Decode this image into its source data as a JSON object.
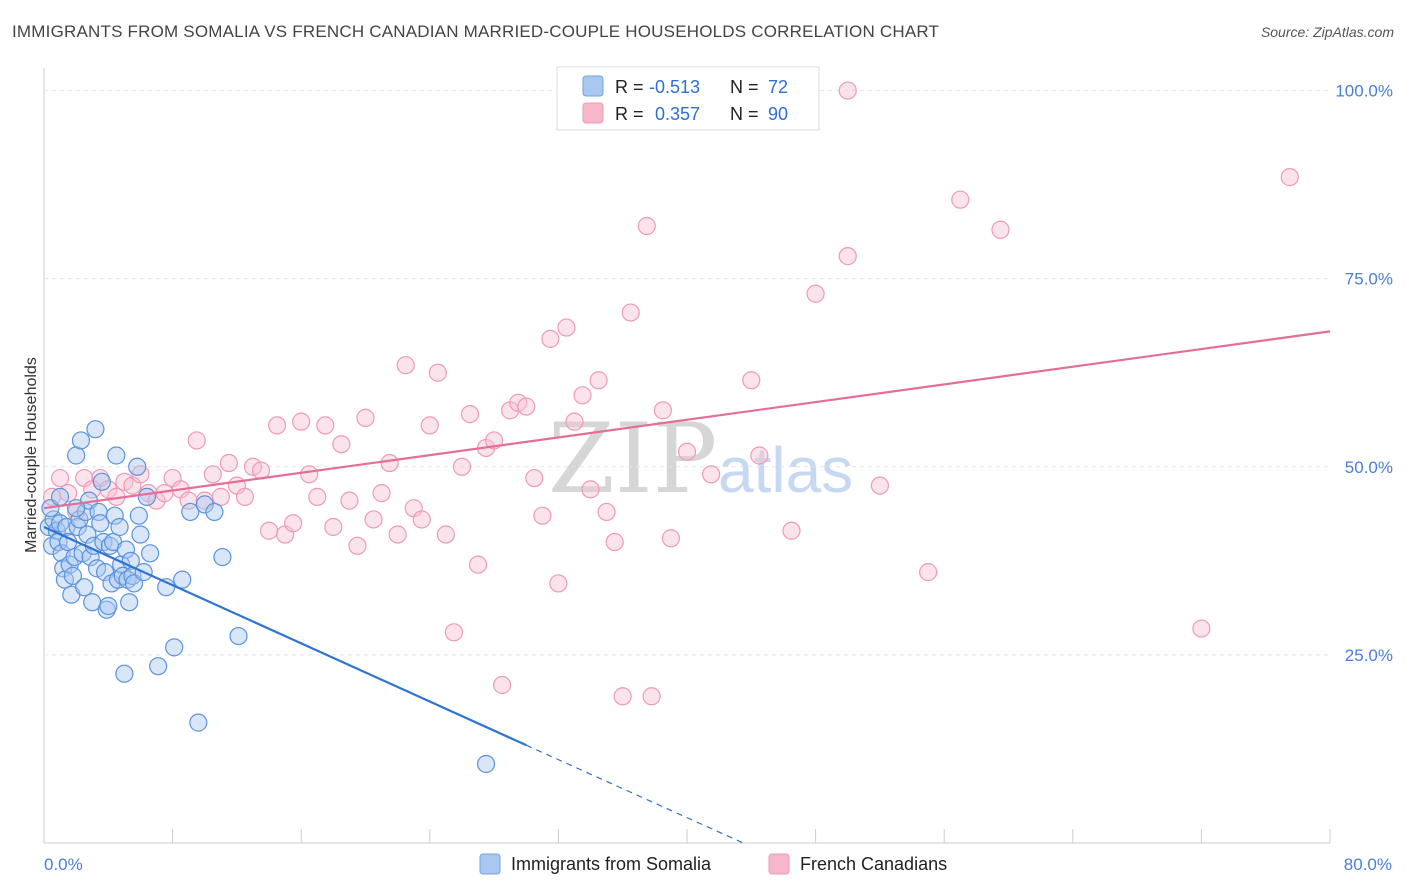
{
  "title": "IMMIGRANTS FROM SOMALIA VS FRENCH CANADIAN MARRIED-COUPLE HOUSEHOLDS CORRELATION CHART",
  "source": "Source: ZipAtlas.com",
  "watermark": {
    "part1": "ZIP",
    "part2": "atlas"
  },
  "legend_top": {
    "rows": [
      {
        "r_label": "R =",
        "r_value": "-0.513",
        "n_label": "N =",
        "n_value": "72",
        "color": "#a9c8f0"
      },
      {
        "r_label": "R =",
        "r_value": "0.357",
        "n_label": "N =",
        "n_value": "90",
        "color": "#f7b6c9"
      }
    ]
  },
  "legend_bottom": [
    {
      "label": "Immigrants from Somalia",
      "color": "#a9c8f0"
    },
    {
      "label": "French Canadians",
      "color": "#f7b6c9"
    }
  ],
  "chart_data": {
    "type": "scatter",
    "title": "IMMIGRANTS FROM SOMALIA VS FRENCH CANADIAN MARRIED-COUPLE HOUSEHOLDS CORRELATION CHART",
    "xlabel": "",
    "ylabel": "Married-couple Households",
    "xlim": [
      0,
      80
    ],
    "ylim": [
      0,
      103
    ],
    "x_tick_labels": {
      "left": "0.0%",
      "right": "80.0%"
    },
    "y_ticks": [
      {
        "value": 100,
        "label": "100.0%"
      },
      {
        "value": 75,
        "label": "75.0%"
      },
      {
        "value": 50,
        "label": "50.0%"
      },
      {
        "value": 25,
        "label": "25.0%"
      }
    ],
    "grid": true,
    "series": [
      {
        "name": "Immigrants from Somalia",
        "color": "#6fa3e0",
        "trend": {
          "x0": 0,
          "y0": 42.0,
          "x1": 30,
          "y1": 13.0,
          "dash_x1": 43.5,
          "dash_y1": 0
        },
        "points": [
          [
            0.3,
            42.0
          ],
          [
            0.5,
            39.5
          ],
          [
            0.6,
            43.0
          ],
          [
            0.8,
            41.5
          ],
          [
            0.9,
            40.0
          ],
          [
            1.0,
            42.5
          ],
          [
            1.1,
            38.5
          ],
          [
            1.2,
            36.5
          ],
          [
            1.3,
            35.0
          ],
          [
            1.4,
            42.0
          ],
          [
            1.5,
            40.0
          ],
          [
            1.6,
            37.0
          ],
          [
            1.7,
            33.0
          ],
          [
            1.8,
            35.5
          ],
          [
            1.9,
            38.0
          ],
          [
            2.0,
            51.5
          ],
          [
            2.1,
            42.0
          ],
          [
            2.2,
            43.0
          ],
          [
            2.3,
            53.5
          ],
          [
            2.4,
            38.5
          ],
          [
            2.5,
            34.0
          ],
          [
            2.6,
            44.0
          ],
          [
            2.7,
            41.0
          ],
          [
            2.8,
            45.5
          ],
          [
            2.9,
            38.0
          ],
          [
            3.0,
            32.0
          ],
          [
            3.1,
            39.5
          ],
          [
            3.2,
            55.0
          ],
          [
            3.3,
            36.5
          ],
          [
            3.4,
            44.0
          ],
          [
            3.5,
            42.5
          ],
          [
            3.6,
            48.0
          ],
          [
            3.7,
            40.0
          ],
          [
            3.8,
            36.0
          ],
          [
            3.9,
            31.0
          ],
          [
            4.0,
            31.5
          ],
          [
            4.1,
            39.5
          ],
          [
            4.2,
            34.5
          ],
          [
            4.3,
            40.0
          ],
          [
            4.4,
            43.5
          ],
          [
            4.5,
            51.5
          ],
          [
            4.6,
            35.0
          ],
          [
            4.7,
            42.0
          ],
          [
            4.8,
            37.0
          ],
          [
            4.9,
            35.5
          ],
          [
            5.0,
            22.5
          ],
          [
            5.1,
            39.0
          ],
          [
            5.2,
            35.0
          ],
          [
            5.3,
            32.0
          ],
          [
            5.4,
            37.5
          ],
          [
            5.5,
            35.5
          ],
          [
            5.6,
            34.5
          ],
          [
            5.8,
            50.0
          ],
          [
            5.9,
            43.5
          ],
          [
            6.0,
            41.0
          ],
          [
            6.2,
            36.0
          ],
          [
            6.4,
            46.0
          ],
          [
            6.6,
            38.5
          ],
          [
            7.1,
            23.5
          ],
          [
            7.6,
            34.0
          ],
          [
            8.1,
            26.0
          ],
          [
            8.6,
            35.0
          ],
          [
            9.1,
            44.0
          ],
          [
            9.6,
            16.0
          ],
          [
            10.0,
            45.0
          ],
          [
            10.6,
            44.0
          ],
          [
            11.1,
            38.0
          ],
          [
            12.1,
            27.5
          ],
          [
            27.5,
            10.5
          ],
          [
            0.4,
            44.5
          ],
          [
            1.0,
            46.0
          ],
          [
            2.0,
            44.5
          ]
        ]
      },
      {
        "name": "French Canadians",
        "color": "#f19ab5",
        "trend": {
          "x0": 0,
          "y0": 44.5,
          "x1": 80,
          "y1": 68.0
        },
        "points": [
          [
            0.5,
            46.0
          ],
          [
            1.0,
            48.5
          ],
          [
            1.5,
            46.5
          ],
          [
            2.0,
            44.0
          ],
          [
            2.5,
            48.5
          ],
          [
            3.0,
            47.0
          ],
          [
            3.5,
            48.5
          ],
          [
            4.0,
            47.0
          ],
          [
            4.5,
            46.0
          ],
          [
            5.0,
            48.0
          ],
          [
            5.5,
            47.5
          ],
          [
            6.0,
            49.0
          ],
          [
            6.5,
            46.5
          ],
          [
            7.0,
            45.5
          ],
          [
            7.5,
            46.5
          ],
          [
            8.0,
            48.5
          ],
          [
            8.5,
            47.0
          ],
          [
            9.0,
            45.5
          ],
          [
            9.5,
            53.5
          ],
          [
            10.0,
            45.5
          ],
          [
            10.5,
            49.0
          ],
          [
            11.0,
            46.0
          ],
          [
            11.5,
            50.5
          ],
          [
            12.0,
            47.5
          ],
          [
            12.5,
            46.0
          ],
          [
            13.0,
            50.0
          ],
          [
            13.5,
            49.5
          ],
          [
            14.0,
            41.5
          ],
          [
            14.5,
            55.5
          ],
          [
            15.0,
            41.0
          ],
          [
            15.5,
            42.5
          ],
          [
            16.0,
            56.0
          ],
          [
            16.5,
            49.0
          ],
          [
            17.0,
            46.0
          ],
          [
            17.5,
            55.5
          ],
          [
            18.0,
            42.0
          ],
          [
            18.5,
            53.0
          ],
          [
            19.0,
            45.5
          ],
          [
            19.5,
            39.5
          ],
          [
            20.0,
            56.5
          ],
          [
            20.5,
            43.0
          ],
          [
            21.0,
            46.5
          ],
          [
            21.5,
            50.5
          ],
          [
            22.0,
            41.0
          ],
          [
            22.5,
            63.5
          ],
          [
            23.0,
            44.5
          ],
          [
            23.5,
            43.0
          ],
          [
            24.0,
            55.5
          ],
          [
            24.5,
            62.5
          ],
          [
            25.0,
            41.0
          ],
          [
            25.5,
            28.0
          ],
          [
            26.0,
            50.0
          ],
          [
            26.5,
            57.0
          ],
          [
            27.0,
            37.0
          ],
          [
            27.5,
            52.5
          ],
          [
            28.0,
            53.5
          ],
          [
            28.5,
            21.0
          ],
          [
            29.0,
            57.5
          ],
          [
            29.5,
            58.5
          ],
          [
            30.0,
            58.0
          ],
          [
            30.5,
            48.5
          ],
          [
            31.0,
            43.5
          ],
          [
            31.5,
            67.0
          ],
          [
            32.0,
            34.5
          ],
          [
            32.5,
            68.5
          ],
          [
            33.0,
            56.0
          ],
          [
            33.5,
            59.5
          ],
          [
            34.0,
            47.0
          ],
          [
            34.5,
            61.5
          ],
          [
            35.0,
            44.0
          ],
          [
            35.5,
            40.0
          ],
          [
            36.0,
            19.5
          ],
          [
            36.5,
            70.5
          ],
          [
            37.5,
            82.0
          ],
          [
            37.8,
            19.5
          ],
          [
            38.5,
            57.5
          ],
          [
            39.0,
            40.5
          ],
          [
            40.0,
            52.0
          ],
          [
            41.5,
            49.0
          ],
          [
            44.0,
            61.5
          ],
          [
            44.5,
            51.5
          ],
          [
            46.5,
            41.5
          ],
          [
            48.0,
            73.0
          ],
          [
            50.0,
            78.0
          ],
          [
            52.0,
            47.5
          ],
          [
            55.0,
            36.0
          ],
          [
            57.0,
            85.5
          ],
          [
            59.5,
            81.5
          ],
          [
            72.0,
            28.5
          ],
          [
            77.5,
            88.5
          ]
        ],
        "outliers_top": [
          [
            47.5,
            100.0
          ],
          [
            50.0,
            100.0
          ]
        ]
      }
    ]
  }
}
